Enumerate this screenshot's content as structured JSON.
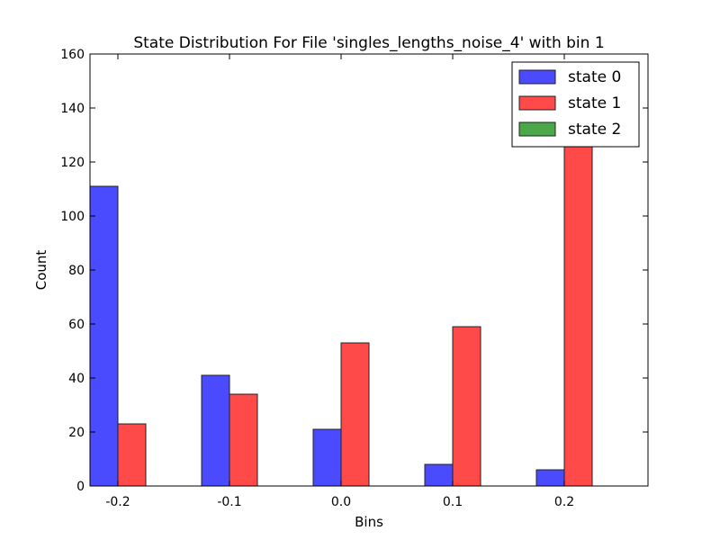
{
  "chart_data": {
    "type": "bar",
    "title": "State Distribution For File 'singles_lengths_noise_4' with bin 1",
    "xlabel": "Bins",
    "ylabel": "Count",
    "categories": [
      "-0.2",
      "-0.1",
      "0.0",
      "0.1",
      "0.2"
    ],
    "ylim": [
      0,
      160
    ],
    "yticks": [
      "0",
      "20",
      "40",
      "60",
      "80",
      "100",
      "120",
      "140",
      "160"
    ],
    "grid": false,
    "legend_position": "top-right",
    "series": [
      {
        "name": "state 0",
        "color": "#4a4aff",
        "values": [
          111,
          41,
          21,
          8,
          6
        ]
      },
      {
        "name": "state 1",
        "color": "#ff4a4a",
        "values": [
          23,
          34,
          53,
          59,
          127
        ]
      },
      {
        "name": "state 2",
        "color": "#4aa84a",
        "values": [
          0,
          0,
          0,
          0,
          0
        ]
      }
    ]
  }
}
